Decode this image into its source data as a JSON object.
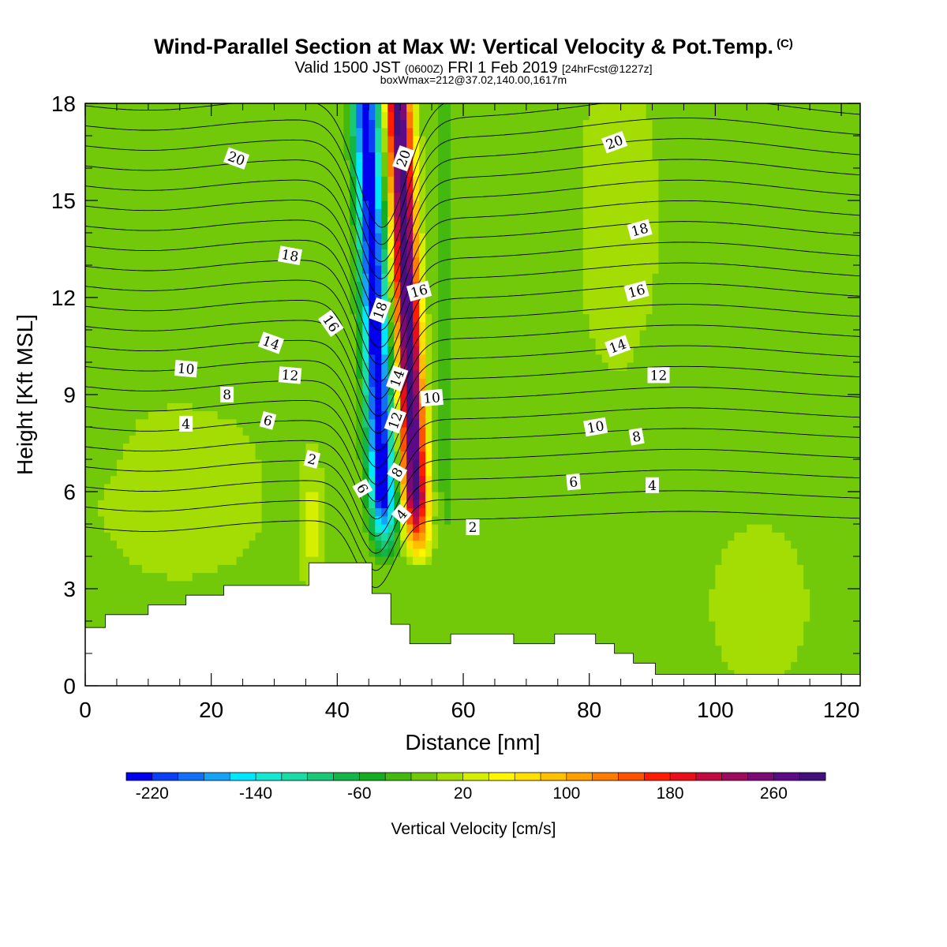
{
  "title": {
    "main": "Wind-Parallel Section at Max W: Vertical Velocity & Pot.Temp.",
    "copyright": "(C)",
    "valid_prefix": "Valid 1500 JST",
    "utc": "(0600Z)",
    "date": "FRI 1 Feb 2019",
    "forecast": "[24hrFcst@1227z]",
    "box": "boxWmax=212@37.02,140.00,1617m"
  },
  "chart_data": {
    "type": "heatmap",
    "xlabel": "Distance [nm]",
    "ylabel": "Height [Kft MSL]",
    "xlim": [
      0,
      123
    ],
    "ylim": [
      0,
      18
    ],
    "x_ticks": [
      0,
      20,
      40,
      60,
      80,
      100,
      120
    ],
    "y_ticks": [
      0,
      3,
      6,
      9,
      12,
      15,
      18
    ],
    "colorbar": {
      "label": "Vertical Velocity [cm/s]",
      "min": -240,
      "max": 300,
      "step": 20,
      "tick_labels": [
        -220,
        -140,
        -60,
        20,
        100,
        180,
        260
      ],
      "colors": [
        "#0000ee",
        "#0b3ff5",
        "#1270f7",
        "#14a3f5",
        "#00e6ff",
        "#14e8d2",
        "#1bdba4",
        "#18c877",
        "#12b54a",
        "#14ad22",
        "#43b90f",
        "#72c90a",
        "#a4dd04",
        "#d6ee00",
        "#fff600",
        "#ffe000",
        "#ffc000",
        "#ffa000",
        "#ff7c00",
        "#ff5200",
        "#ff1c00",
        "#e80f1a",
        "#c00a40",
        "#9c0b5e",
        "#7c0a74",
        "#5c0a88",
        "#44107e"
      ]
    },
    "terrain": [
      [
        0,
        1.8
      ],
      [
        3.2,
        1.8
      ],
      [
        3.2,
        2.2
      ],
      [
        10,
        2.2
      ],
      [
        10,
        2.5
      ],
      [
        16,
        2.5
      ],
      [
        16,
        2.8
      ],
      [
        22,
        2.8
      ],
      [
        22,
        3.1
      ],
      [
        35.5,
        3.1
      ],
      [
        35.5,
        3.8
      ],
      [
        45.5,
        3.8
      ],
      [
        45.5,
        2.85
      ],
      [
        48.5,
        2.85
      ],
      [
        48.5,
        1.9
      ],
      [
        51.5,
        1.9
      ],
      [
        51.5,
        1.3
      ],
      [
        58,
        1.3
      ],
      [
        58,
        1.6
      ],
      [
        68,
        1.6
      ],
      [
        68,
        1.3
      ],
      [
        74.5,
        1.3
      ],
      [
        74.5,
        1.6
      ],
      [
        81,
        1.6
      ],
      [
        81,
        1.3
      ],
      [
        84,
        1.3
      ],
      [
        84,
        1.0
      ],
      [
        87,
        1.0
      ],
      [
        87,
        0.7
      ],
      [
        90.5,
        0.7
      ],
      [
        90.5,
        0.35
      ],
      [
        123,
        0.35
      ]
    ],
    "theta_contour_labels": [
      {
        "text": "20",
        "x": 24,
        "y": 16.3,
        "rot": 20
      },
      {
        "text": "20",
        "x": 50.5,
        "y": 16.3,
        "rot": -70
      },
      {
        "text": "20",
        "x": 84,
        "y": 16.8,
        "rot": -20
      },
      {
        "text": "18",
        "x": 32.5,
        "y": 13.3,
        "rot": 10
      },
      {
        "text": "18",
        "x": 46.8,
        "y": 11.6,
        "rot": -70
      },
      {
        "text": "18",
        "x": 88,
        "y": 14.1,
        "rot": -15
      },
      {
        "text": "16",
        "x": 39,
        "y": 11.2,
        "rot": 55
      },
      {
        "text": "16",
        "x": 53,
        "y": 12.2,
        "rot": -15
      },
      {
        "text": "16",
        "x": 87.5,
        "y": 12.2,
        "rot": -15
      },
      {
        "text": "14",
        "x": 29.5,
        "y": 10.6,
        "rot": 20
      },
      {
        "text": "14",
        "x": 49.5,
        "y": 9.5,
        "rot": -70
      },
      {
        "text": "14",
        "x": 84.5,
        "y": 10.5,
        "rot": -20
      },
      {
        "text": "12",
        "x": 32.5,
        "y": 9.6,
        "rot": 5
      },
      {
        "text": "12",
        "x": 49.2,
        "y": 8.2,
        "rot": -70
      },
      {
        "text": "12",
        "x": 91,
        "y": 9.6,
        "rot": 0
      },
      {
        "text": "10",
        "x": 16,
        "y": 9.8,
        "rot": 5
      },
      {
        "text": "10",
        "x": 55,
        "y": 8.9,
        "rot": -5
      },
      {
        "text": "10",
        "x": 81,
        "y": 8.0,
        "rot": -10
      },
      {
        "text": "8",
        "x": 22.5,
        "y": 9.0,
        "rot": 0
      },
      {
        "text": "8",
        "x": 49.5,
        "y": 6.6,
        "rot": -60
      },
      {
        "text": "8",
        "x": 87.5,
        "y": 7.7,
        "rot": -10
      },
      {
        "text": "6",
        "x": 29,
        "y": 8.2,
        "rot": 15
      },
      {
        "text": "6",
        "x": 44,
        "y": 6.1,
        "rot": 60
      },
      {
        "text": "6",
        "x": 77.5,
        "y": 6.3,
        "rot": -5
      },
      {
        "text": "4",
        "x": 16,
        "y": 8.1,
        "rot": 0
      },
      {
        "text": "4",
        "x": 50.2,
        "y": 5.3,
        "rot": -50
      },
      {
        "text": "4",
        "x": 90,
        "y": 6.2,
        "rot": 0
      },
      {
        "text": "2",
        "x": 36,
        "y": 7.0,
        "rot": 15
      },
      {
        "text": "2",
        "x": 61.5,
        "y": 4.9,
        "rot": 0
      }
    ]
  }
}
